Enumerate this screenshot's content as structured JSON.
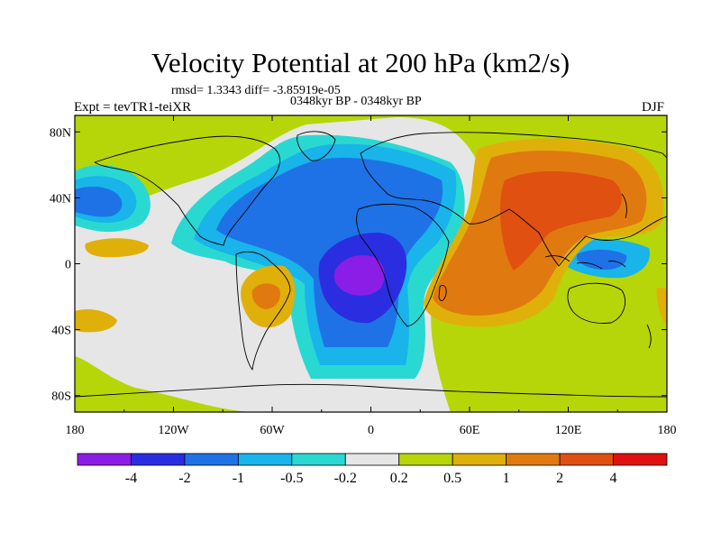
{
  "title": "Velocity Potential at 200 hPa (km2/s)",
  "stats_line": "rmsd= 1.3343 diff= -3.85919e-05",
  "experiment_label": "Expt = tevTR1-teiXR",
  "period_label": "0348kyr BP - 0348kyr BP",
  "season_label": "DJF",
  "map": {
    "projection": "cylindrical equidistant",
    "lon_range": [
      -180,
      180
    ],
    "lat_range": [
      -90,
      90
    ],
    "x_tick_labels": [
      "180",
      "120W",
      "60W",
      "0",
      "60E",
      "120E",
      "180"
    ],
    "y_tick_labels": [
      "80N",
      "40N",
      "0",
      "40S",
      "80S"
    ]
  },
  "colorbar": {
    "levels": [
      "-4",
      "-2",
      "-1",
      "-0.5",
      "-0.2",
      "0.2",
      "0.5",
      "1",
      "2",
      "4"
    ],
    "colors": [
      "#8a1ee6",
      "#2a2ee0",
      "#1e72e6",
      "#18b4ea",
      "#2ad8d2",
      "#e6e6e6",
      "#b6d60a",
      "#e0b00a",
      "#e07a10",
      "#e05010",
      "#e01010"
    ]
  }
}
